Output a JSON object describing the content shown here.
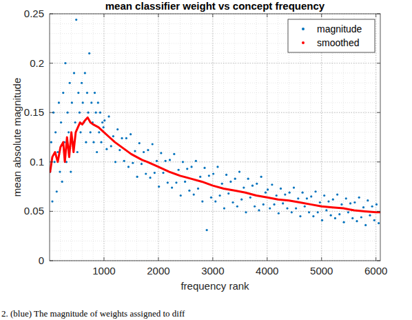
{
  "chart_data": {
    "type": "scatter",
    "title": "mean classifier weight vs concept frequency",
    "x_label": "frequency rank",
    "y_label": "mean absolute magnitude",
    "xlim": [
      0,
      6080
    ],
    "ylim": [
      0,
      0.25
    ],
    "xticks": [
      1000,
      2000,
      3000,
      4000,
      5000,
      6000
    ],
    "yticks": [
      0,
      0.05,
      0.1,
      0.15,
      0.2,
      0.25
    ],
    "grid": true,
    "legend": "northeast",
    "series": [
      {
        "name": "magnitude",
        "color": "#0072bd",
        "marker": "point",
        "x": [
          10,
          30,
          50,
          70,
          90,
          110,
          130,
          150,
          170,
          190,
          210,
          230,
          250,
          270,
          290,
          310,
          330,
          350,
          370,
          390,
          410,
          430,
          450,
          470,
          490,
          510,
          530,
          550,
          570,
          590,
          610,
          630,
          650,
          670,
          690,
          710,
          730,
          750,
          770,
          790,
          810,
          830,
          850,
          870,
          890,
          910,
          930,
          950,
          970,
          990,
          1010,
          1050,
          1090,
          1130,
          1170,
          1210,
          1250,
          1290,
          1330,
          1370,
          1410,
          1450,
          1490,
          1530,
          1570,
          1610,
          1650,
          1690,
          1730,
          1770,
          1810,
          1850,
          1890,
          1930,
          1970,
          2010,
          2050,
          2090,
          2130,
          2170,
          2210,
          2250,
          2290,
          2330,
          2370,
          2410,
          2450,
          2490,
          2530,
          2570,
          2610,
          2650,
          2690,
          2730,
          2770,
          2810,
          2850,
          2890,
          2930,
          2970,
          3010,
          3050,
          3090,
          3130,
          3170,
          3210,
          3250,
          3290,
          3330,
          3370,
          3410,
          3450,
          3490,
          3530,
          3570,
          3610,
          3650,
          3690,
          3730,
          3770,
          3810,
          3850,
          3890,
          3930,
          3970,
          4010,
          4050,
          4090,
          4130,
          4170,
          4210,
          4250,
          4290,
          4330,
          4370,
          4410,
          4450,
          4490,
          4530,
          4570,
          4610,
          4650,
          4690,
          4730,
          4770,
          4810,
          4850,
          4890,
          4930,
          4970,
          5010,
          5050,
          5090,
          5130,
          5170,
          5210,
          5250,
          5290,
          5330,
          5370,
          5410,
          5450,
          5490,
          5530,
          5570,
          5610,
          5650,
          5690,
          5730,
          5770,
          5810,
          5850,
          5890,
          5930,
          5970,
          6010,
          6050
        ],
        "values": [
          0.09,
          0.12,
          0.06,
          0.15,
          0.1,
          0.13,
          0.07,
          0.11,
          0.16,
          0.09,
          0.14,
          0.08,
          0.17,
          0.12,
          0.2,
          0.1,
          0.15,
          0.13,
          0.18,
          0.09,
          0.16,
          0.12,
          0.19,
          0.14,
          0.244,
          0.11,
          0.17,
          0.15,
          0.13,
          0.18,
          0.16,
          0.14,
          0.19,
          0.12,
          0.17,
          0.15,
          0.21,
          0.13,
          0.16,
          0.14,
          0.12,
          0.17,
          0.15,
          0.11,
          0.16,
          0.13,
          0.15,
          0.12,
          0.14,
          0.135,
          0.142,
          0.113,
          0.146,
          0.116,
          0.126,
          0.1,
          0.133,
          0.112,
          0.124,
          0.101,
          0.124,
          0.095,
          0.128,
          0.099,
          0.111,
          0.085,
          0.119,
          0.098,
          0.11,
          0.088,
          0.112,
          0.084,
          0.118,
          0.089,
          0.101,
          0.075,
          0.109,
          0.089,
          0.101,
          0.079,
          0.102,
          0.074,
          0.108,
          0.079,
          0.092,
          0.066,
          0.1,
          0.08,
          0.093,
          0.071,
          0.095,
          0.067,
          0.101,
          0.073,
          0.085,
          0.06,
          0.094,
          0.031,
          0.086,
          0.064,
          0.088,
          0.06,
          0.095,
          0.066,
          0.078,
          0.053,
          0.087,
          0.068,
          0.08,
          0.059,
          0.083,
          0.055,
          0.09,
          0.062,
          0.074,
          0.049,
          0.083,
          0.064,
          0.076,
          0.055,
          0.078,
          0.051,
          0.085,
          0.057,
          0.069,
          0.072,
          0.053,
          0.077,
          0.057,
          0.066,
          0.048,
          0.073,
          0.058,
          0.067,
          0.053,
          0.069,
          0.049,
          0.074,
          0.053,
          0.063,
          0.045,
          0.069,
          0.055,
          0.063,
          0.049,
          0.065,
          0.045,
          0.07,
          0.049,
          0.059,
          0.041,
          0.066,
          0.051,
          0.06,
          0.046,
          0.062,
          0.043,
          0.067,
          0.047,
          0.057,
          0.039,
          0.063,
          0.049,
          0.058,
          0.043,
          0.059,
          0.04,
          0.064,
          0.044,
          0.054,
          0.036,
          0.061,
          0.046,
          0.055,
          0.041,
          0.057,
          0.038
        ]
      },
      {
        "name": "smoothed",
        "color": "#ff0000",
        "type": "line",
        "marker": "point",
        "line_style": "solid",
        "x": [
          10,
          50,
          100,
          150,
          200,
          250,
          280,
          320,
          360,
          400,
          440,
          480,
          520,
          560,
          600,
          650,
          700,
          750,
          800,
          900,
          1000,
          1100,
          1200,
          1300,
          1400,
          1500,
          1600,
          1700,
          1800,
          2000,
          2200,
          2400,
          2600,
          2800,
          3000,
          3200,
          3400,
          3600,
          3800,
          4000,
          4200,
          4400,
          4600,
          4800,
          5000,
          5200,
          5400,
          5600,
          5800,
          6000,
          6070
        ],
        "values": [
          0.09,
          0.105,
          0.11,
          0.1,
          0.115,
          0.12,
          0.1,
          0.125,
          0.105,
          0.13,
          0.11,
          0.13,
          0.135,
          0.14,
          0.138,
          0.142,
          0.145,
          0.14,
          0.138,
          0.135,
          0.13,
          0.125,
          0.12,
          0.116,
          0.112,
          0.108,
          0.105,
          0.102,
          0.1,
          0.095,
          0.09,
          0.086,
          0.083,
          0.08,
          0.076,
          0.073,
          0.071,
          0.069,
          0.066,
          0.064,
          0.062,
          0.061,
          0.059,
          0.057,
          0.055,
          0.054,
          0.053,
          0.051,
          0.05,
          0.049,
          0.049
        ]
      }
    ]
  },
  "caption": "2. (blue) The magnitude of weights assigned to diff"
}
